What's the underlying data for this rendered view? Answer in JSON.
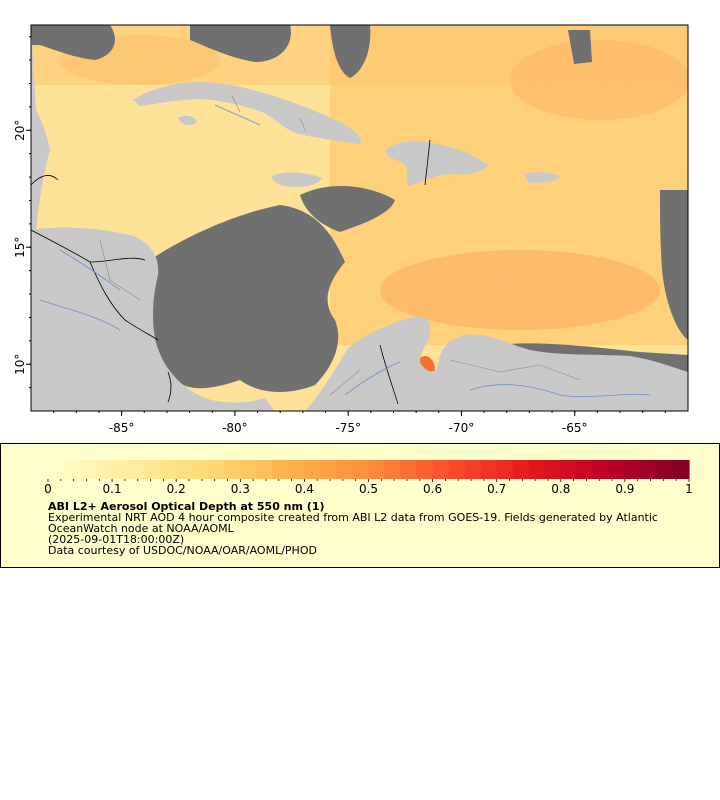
{
  "map": {
    "type": "map",
    "lon_range": [
      -89.0,
      -60.0
    ],
    "lat_range": [
      8.0,
      24.5
    ],
    "x_ticks": [
      {
        "value": -85,
        "label": "-85°"
      },
      {
        "value": -80,
        "label": "-80°"
      },
      {
        "value": -75,
        "label": "-75°"
      },
      {
        "value": -70,
        "label": "-70°"
      },
      {
        "value": -65,
        "label": "-65°"
      }
    ],
    "y_ticks": [
      {
        "value": 10,
        "label": "10°"
      },
      {
        "value": 15,
        "label": "15°"
      },
      {
        "value": 20,
        "label": "20°"
      }
    ],
    "colors": {
      "land": "#c8c8c8",
      "no_data": "#707070",
      "rivers": "#6d8fd0",
      "borders": "#000000"
    },
    "regions_described": [
      "Cuba",
      "Hispaniola",
      "Jamaica",
      "Puerto Rico",
      "Central America",
      "Colombia",
      "Venezuela",
      "Caribbean Sea",
      "Gulf of Mexico"
    ]
  },
  "colorbar": {
    "min": 0,
    "max": 1,
    "colors": [
      "#ffffcc",
      "#ffeda0",
      "#fed976",
      "#feb24c",
      "#fd8d3c",
      "#fc4e2a",
      "#e31a1c",
      "#bd0026",
      "#800026"
    ],
    "tick_labels": [
      "0",
      "0.1",
      "0.2",
      "0.3",
      "0.4",
      "0.5",
      "0.6",
      "0.7",
      "0.8",
      "0.9",
      "1"
    ]
  },
  "legend": {
    "title": "ABI L2+ Aerosol Optical Depth at 550 nm (1)",
    "line1": "Experimental NRT AOD 4 hour composite created from ABI L2 data from GOES-19. Fields generated by Atlantic OceanWatch node at NOAA/AOML",
    "line2": "(2025-09-01T18:00:00Z)",
    "line3": "Data courtesy of USDOC/NOAA/OAR/AOML/PHOD"
  }
}
